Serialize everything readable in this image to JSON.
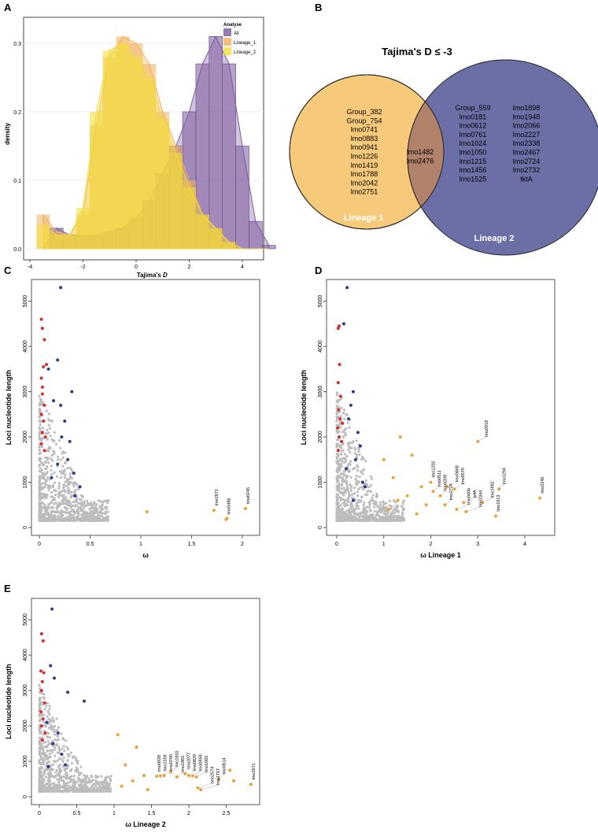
{
  "panels": {
    "a": "A",
    "b": "B",
    "c": "C",
    "d": "D",
    "e": "E"
  },
  "chart_data": [
    {
      "id": "A",
      "type": "histogram+density",
      "xlabel": "Tajima's",
      "xlabel_italic": "D",
      "ylabel": "density",
      "xlim": [
        -4,
        5.5
      ],
      "ylim": [
        0,
        0.33
      ],
      "xticks": [
        -4,
        -2,
        0,
        2,
        4
      ],
      "yticks": [
        0.0,
        0.1,
        0.2,
        0.3
      ],
      "legend": {
        "title": "Analyse",
        "position": "top-right"
      },
      "x": [
        -3.5,
        -3,
        -2.5,
        -2,
        -1.5,
        -1,
        -0.5,
        0,
        0.5,
        1,
        1.5,
        2,
        2.5,
        3,
        3.5,
        4,
        4.5,
        5
      ],
      "series": [
        {
          "name": "All",
          "color": "#7b5a9e",
          "values": [
            0.0,
            0.03,
            0.02,
            0.02,
            0.02,
            0.025,
            0.03,
            0.045,
            0.07,
            0.11,
            0.15,
            0.2,
            0.27,
            0.31,
            0.27,
            0.15,
            0.04,
            0.005
          ]
        },
        {
          "name": "Lineage_1",
          "color": "#f0b060",
          "values": [
            0.05,
            0.025,
            0.02,
            0.05,
            0.18,
            0.28,
            0.31,
            0.3,
            0.27,
            0.2,
            0.15,
            0.1,
            0.05,
            0.03,
            0.01,
            0.0,
            0.0,
            0.0
          ]
        },
        {
          "name": "Lineage_2",
          "color": "#f2dc3a",
          "values": [
            0.035,
            0.02,
            0.02,
            0.06,
            0.2,
            0.29,
            0.3,
            0.28,
            0.25,
            0.19,
            0.14,
            0.09,
            0.05,
            0.03,
            0.01,
            0.0,
            0.0,
            0.0
          ]
        }
      ]
    },
    {
      "id": "B",
      "type": "venn",
      "title": "Tajima's D ≤ -3",
      "sets": [
        {
          "name": "Lineage 1",
          "color": "#f7c97a",
          "only": [
            "Group_382",
            "Group_754",
            "lmo0741",
            "lmo0883",
            "lmo0941",
            "lmo1226",
            "lmo1419",
            "lmo1788",
            "lmo2042",
            "lmo2751"
          ]
        },
        {
          "name": "Lineage 2",
          "color": "#6c6fa6",
          "only_col1": [
            "Group_559",
            "lmo0181",
            "lmo0612",
            "lmo0761",
            "lmo1024",
            "lmo1050",
            "lmo1215",
            "lmo1456",
            "lmo1525"
          ],
          "only_col2": [
            "lmo1898",
            "lmo1948",
            "lmo2066",
            "lmo2227",
            "lmo2338",
            "lmo2467",
            "lmo2724",
            "lmo2732",
            "tktA"
          ]
        }
      ],
      "intersection": [
        "lmo1482",
        "lmo2476"
      ],
      "intersection_color": "#b0826a"
    },
    {
      "id": "C",
      "type": "scatter",
      "xlabel": "ω",
      "ylabel": "Loci nucleotide length",
      "xlim": [
        -0.1,
        2.1
      ],
      "ylim": [
        0,
        5400
      ],
      "xticks": [
        0,
        0.5,
        1,
        1.5,
        2
      ],
      "yticks": [
        0,
        1000,
        2000,
        3000,
        4000,
        5000
      ],
      "red": [
        [
          0.02,
          4600
        ],
        [
          0.03,
          4400
        ],
        [
          0.05,
          4150
        ],
        [
          0.04,
          3550
        ],
        [
          0.02,
          3300
        ],
        [
          0.03,
          2950
        ],
        [
          0.05,
          2700
        ],
        [
          0.02,
          2500
        ],
        [
          0.04,
          2350
        ],
        [
          0.03,
          2100
        ],
        [
          0.06,
          2000
        ],
        [
          0.02,
          1850
        ],
        [
          0.05,
          1700
        ],
        [
          0.03,
          3100
        ],
        [
          0.07,
          3600
        ]
      ],
      "blue": [
        [
          0.21,
          5300
        ],
        [
          0.18,
          3700
        ],
        [
          0.09,
          3500
        ],
        [
          0.14,
          2800
        ],
        [
          0.21,
          2700
        ],
        [
          0.32,
          3000
        ],
        [
          0.25,
          2350
        ],
        [
          0.22,
          2000
        ],
        [
          0.3,
          1900
        ],
        [
          0.28,
          1500
        ],
        [
          0.18,
          1400
        ],
        [
          0.34,
          1200
        ],
        [
          0.35,
          700
        ],
        [
          0.12,
          1100
        ],
        [
          0.4,
          900
        ]
      ],
      "orange": [
        {
          "x": 1.06,
          "y": 350
        },
        {
          "x": 1.72,
          "y": 380,
          "label": "lmo2671"
        },
        {
          "x": 1.84,
          "y": 180,
          "label": "lmo0486"
        },
        {
          "x": 1.85,
          "y": 200
        },
        {
          "x": 2.03,
          "y": 420,
          "label": "lmo0245"
        }
      ]
    },
    {
      "id": "D",
      "type": "scatter",
      "xlabel": "ω Lineage 1",
      "ylabel": "Loci nucleotide length",
      "xlim": [
        -0.2,
        4.4
      ],
      "ylim": [
        0,
        5400
      ],
      "xticks": [
        0,
        1,
        2,
        3,
        4
      ],
      "yticks": [
        0,
        1000,
        2000,
        3000,
        4000,
        5000
      ],
      "red": [
        [
          0.03,
          4400
        ],
        [
          0.05,
          4450
        ],
        [
          0.06,
          3600
        ],
        [
          0.03,
          3200
        ],
        [
          0.08,
          2900
        ],
        [
          0.04,
          2600
        ],
        [
          0.07,
          2400
        ],
        [
          0.02,
          2200
        ],
        [
          0.05,
          2000
        ],
        [
          0.1,
          1900
        ],
        [
          0.03,
          1700
        ],
        [
          0.12,
          2300
        ]
      ],
      "blue": [
        [
          0.22,
          5300
        ],
        [
          0.15,
          4500
        ],
        [
          0.35,
          3000
        ],
        [
          0.3,
          2700
        ],
        [
          0.25,
          2400
        ],
        [
          0.45,
          2100
        ],
        [
          0.5,
          1800
        ],
        [
          0.4,
          1500
        ],
        [
          0.2,
          1300
        ],
        [
          0.55,
          1000
        ],
        [
          0.6,
          900
        ],
        [
          0.35,
          600
        ]
      ],
      "orange": [
        {
          "x": 1.0,
          "y": 1500
        },
        {
          "x": 1.2,
          "y": 1100
        },
        {
          "x": 1.35,
          "y": 2000
        },
        {
          "x": 1.5,
          "y": 700
        },
        {
          "x": 1.1,
          "y": 400
        },
        {
          "x": 1.6,
          "y": 1600
        },
        {
          "x": 1.8,
          "y": 900
        },
        {
          "x": 1.3,
          "y": 600
        },
        {
          "x": 1.7,
          "y": 300
        },
        {
          "x": 1.9,
          "y": 500
        },
        {
          "x": 2.0,
          "y": 1000,
          "label": "lmo1202"
        },
        {
          "x": 2.05,
          "y": 800,
          "label": "lmo0511"
        },
        {
          "x": 2.2,
          "y": 700,
          "label": "lmo0209"
        },
        {
          "x": 2.35,
          "y": 900,
          "label": "lmo0668"
        },
        {
          "x": 2.3,
          "y": 500,
          "label": "lmo2724"
        },
        {
          "x": 2.5,
          "y": 850,
          "label": "lmo0570"
        },
        {
          "x": 2.55,
          "y": 400,
          "label": "lmo0406"
        },
        {
          "x": 2.75,
          "y": 350,
          "label": "lmo2344"
        },
        {
          "x": 2.7,
          "y": 550,
          "label": "prfA"
        },
        {
          "x": 3.0,
          "y": 1900,
          "label": "lmo0918"
        },
        {
          "x": 3.1,
          "y": 550,
          "label": "lmo1982"
        },
        {
          "x": 3.38,
          "y": 250,
          "label": "lmo1613"
        },
        {
          "x": 3.45,
          "y": 850,
          "label": "lmo1294"
        },
        {
          "x": 4.32,
          "y": 650,
          "label": "lmo2246"
        }
      ]
    },
    {
      "id": "E",
      "type": "scatter",
      "xlabel": "ω Lineage 2",
      "ylabel": "Loci nucleotide length",
      "xlim": [
        -0.1,
        2.95
      ],
      "ylim": [
        0,
        5400
      ],
      "xticks": [
        0,
        0.5,
        1,
        1.5,
        2,
        2.5
      ],
      "yticks": [
        0,
        1000,
        2000,
        3000,
        4000,
        5000
      ],
      "red": [
        [
          0.03,
          4600
        ],
        [
          0.05,
          4400
        ],
        [
          0.02,
          3550
        ],
        [
          0.06,
          3500
        ],
        [
          0.04,
          3250
        ],
        [
          0.03,
          3000
        ],
        [
          0.07,
          2650
        ],
        [
          0.02,
          2400
        ],
        [
          0.05,
          2200
        ],
        [
          0.03,
          2000
        ],
        [
          0.08,
          1800
        ],
        [
          0.04,
          1600
        ]
      ],
      "blue": [
        [
          0.17,
          5300
        ],
        [
          0.15,
          3700
        ],
        [
          0.2,
          3350
        ],
        [
          0.38,
          2950
        ],
        [
          0.6,
          2700
        ],
        [
          0.1,
          2100
        ],
        [
          0.25,
          1800
        ],
        [
          0.18,
          1500
        ],
        [
          0.3,
          1200
        ],
        [
          0.35,
          900
        ],
        [
          0.12,
          850
        ]
      ],
      "orange": [
        {
          "x": 1.05,
          "y": 1750
        },
        {
          "x": 1.3,
          "y": 1400
        },
        {
          "x": 1.15,
          "y": 900
        },
        {
          "x": 1.4,
          "y": 600
        },
        {
          "x": 1.1,
          "y": 300
        },
        {
          "x": 1.25,
          "y": 450
        },
        {
          "x": 1.45,
          "y": 200
        },
        {
          "x": 1.57,
          "y": 580,
          "label": "lmo0928"
        },
        {
          "x": 1.62,
          "y": 590,
          "label": "lmo1558"
        },
        {
          "x": 1.67,
          "y": 600,
          "label": "lmo0760"
        },
        {
          "x": 1.76,
          "y": 700,
          "label": "lmo1855"
        },
        {
          "x": 1.84,
          "y": 560,
          "label": "lmo1865"
        },
        {
          "x": 1.95,
          "y": 650,
          "label": "lmo2077"
        },
        {
          "x": 2.0,
          "y": 600,
          "label": "lmo0829"
        },
        {
          "x": 2.05,
          "y": 590,
          "label": "lmo0858"
        },
        {
          "x": 2.1,
          "y": 560,
          "label": "lmo1065"
        },
        {
          "x": 2.12,
          "y": 250,
          "label": "lmo2574"
        },
        {
          "x": 2.16,
          "y": 200,
          "label": "lmo1707"
        },
        {
          "x": 2.4,
          "y": 500,
          "label": "lmo0614"
        },
        {
          "x": 2.55,
          "y": 750
        },
        {
          "x": 2.6,
          "y": 450
        },
        {
          "x": 2.83,
          "y": 350,
          "label": "lmo2671"
        }
      ]
    }
  ],
  "colors": {
    "gray": "#bcbcbc",
    "red": "#d62d2d",
    "blue": "#2e3a8c",
    "orange": "#e8a33a"
  }
}
